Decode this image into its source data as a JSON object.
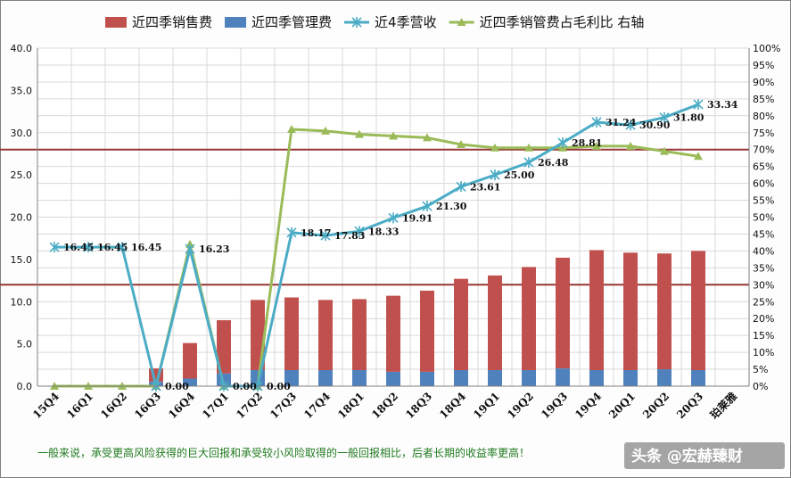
{
  "chart_data": {
    "type": "bar",
    "categories": [
      "15Q4",
      "16Q1",
      "16Q2",
      "16Q3",
      "16Q4",
      "17Q1",
      "17Q2",
      "17Q3",
      "17Q4",
      "18Q1",
      "18Q2",
      "18Q3",
      "18Q4",
      "19Q1",
      "19Q2",
      "19Q3",
      "19Q4",
      "20Q1",
      "20Q2",
      "20Q3",
      "珀莱雅"
    ],
    "series": [
      {
        "name": "近四季销售费",
        "kind": "bar",
        "axis": "left",
        "color": "#c0504d",
        "values": [
          0,
          0,
          0,
          1.6,
          4.2,
          6.3,
          8.3,
          8.6,
          8.3,
          8.4,
          9.0,
          9.6,
          10.8,
          11.2,
          12.2,
          13.1,
          14.2,
          13.9,
          13.7,
          14.1,
          null
        ]
      },
      {
        "name": "近四季管理费",
        "kind": "bar",
        "axis": "left",
        "color": "#4f81bd",
        "values": [
          0,
          0,
          0,
          0.5,
          0.9,
          1.5,
          1.9,
          1.9,
          1.9,
          1.9,
          1.7,
          1.7,
          1.9,
          1.9,
          1.9,
          2.1,
          1.9,
          1.9,
          2.0,
          1.9,
          null
        ]
      },
      {
        "name": "近4季营收",
        "kind": "line",
        "axis": "left",
        "color": "#4bacc6",
        "values": [
          16.45,
          16.45,
          16.45,
          0.0,
          16.23,
          0.0,
          0.0,
          18.17,
          17.83,
          18.33,
          19.91,
          21.3,
          23.61,
          25.0,
          26.48,
          28.81,
          31.24,
          30.9,
          31.8,
          33.34,
          null
        ],
        "labels": [
          "16.45",
          "16.45",
          "16.45",
          "0.00",
          "16.23",
          "0.00",
          "0.00",
          "18.17",
          "17.83",
          "18.33",
          "19.91",
          "21.30",
          "23.61",
          "25.00",
          "26.48",
          "28.81",
          "31.24",
          "30.90",
          "31.80",
          "33.34",
          ""
        ]
      },
      {
        "name": "近四季销管费占毛利比 右轴",
        "kind": "line",
        "axis": "right",
        "color": "#9bbb59",
        "values": [
          0,
          0,
          0,
          0,
          42,
          0,
          0,
          76,
          75.5,
          74.5,
          74,
          73.5,
          71.5,
          70.5,
          70.5,
          70.5,
          71,
          71,
          69.5,
          68,
          null
        ]
      }
    ],
    "reference_lines": [
      {
        "axis": "right",
        "value": 70,
        "color": "#953735"
      },
      {
        "axis": "right",
        "value": 30,
        "color": "#953735"
      }
    ],
    "ylim": [
      0,
      40
    ],
    "yticks": [
      "0.0",
      "5.0",
      "10.0",
      "15.0",
      "20.0",
      "25.0",
      "30.0",
      "35.0",
      "40.0"
    ],
    "y2lim": [
      0,
      100
    ],
    "y2ticks": [
      "0%",
      "5%",
      "10%",
      "15%",
      "20%",
      "25%",
      "30%",
      "35%",
      "40%",
      "45%",
      "50%",
      "55%",
      "60%",
      "65%",
      "70%",
      "75%",
      "80%",
      "85%",
      "90%",
      "95%",
      "100%"
    ],
    "grid": true,
    "legend": "top",
    "title": "",
    "xlabel": "",
    "ylabel": ""
  },
  "footer": {
    "note": "一般来说，承受更高风险获得的巨大回报和承受较小风险取得的一般回报相比，后者长期的收益率更高！",
    "watermark": "头条 @宏赫臻财"
  }
}
